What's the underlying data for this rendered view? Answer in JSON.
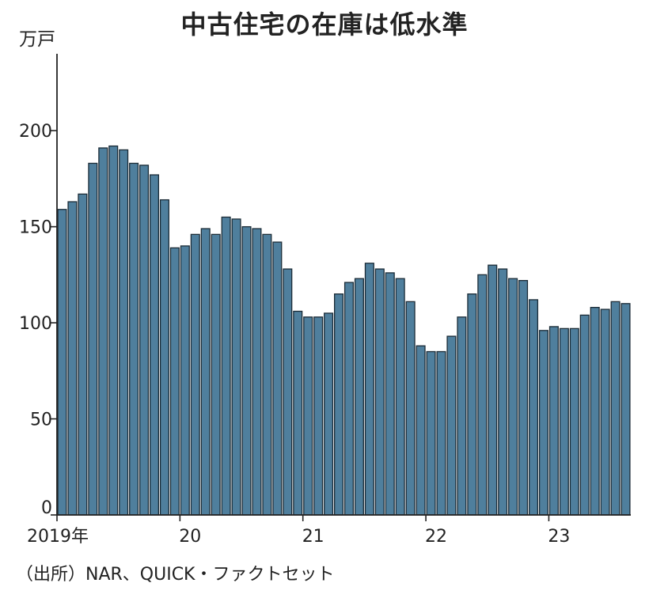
{
  "chart_data": {
    "type": "bar",
    "title": "中古住宅の在庫は低水準",
    "ylabel": "万戸",
    "xlabel": "",
    "ylim": [
      0,
      240
    ],
    "yticks": [
      0,
      50,
      100,
      150,
      200
    ],
    "x_tick_labels": [
      {
        "label": "2019年",
        "index": 0
      },
      {
        "label": "20",
        "index": 12
      },
      {
        "label": "21",
        "index": 24
      },
      {
        "label": "22",
        "index": 36
      },
      {
        "label": "23",
        "index": 48
      }
    ],
    "categories": [
      "2019-01",
      "2019-02",
      "2019-03",
      "2019-04",
      "2019-05",
      "2019-06",
      "2019-07",
      "2019-08",
      "2019-09",
      "2019-10",
      "2019-11",
      "2019-12",
      "2020-01",
      "2020-02",
      "2020-03",
      "2020-04",
      "2020-05",
      "2020-06",
      "2020-07",
      "2020-08",
      "2020-09",
      "2020-10",
      "2020-11",
      "2020-12",
      "2021-01",
      "2021-02",
      "2021-03",
      "2021-04",
      "2021-05",
      "2021-06",
      "2021-07",
      "2021-08",
      "2021-09",
      "2021-10",
      "2021-11",
      "2021-12",
      "2022-01",
      "2022-02",
      "2022-03",
      "2022-04",
      "2022-05",
      "2022-06",
      "2022-07",
      "2022-08",
      "2022-09",
      "2022-10",
      "2022-11",
      "2022-12",
      "2023-01",
      "2023-02",
      "2023-03",
      "2023-04",
      "2023-05",
      "2023-06",
      "2023-07",
      "2023-08"
    ],
    "values": [
      159,
      163,
      167,
      183,
      191,
      192,
      190,
      183,
      182,
      177,
      164,
      139,
      140,
      146,
      149,
      146,
      155,
      154,
      150,
      149,
      146,
      142,
      128,
      106,
      103,
      103,
      105,
      115,
      121,
      123,
      131,
      128,
      126,
      123,
      111,
      88,
      85,
      85,
      93,
      103,
      115,
      125,
      130,
      128,
      123,
      122,
      112,
      96,
      98,
      97,
      97,
      104,
      108,
      107,
      111,
      110
    ],
    "bar_color": "#4f7f9d",
    "grid": false,
    "source": "（出所）NAR、QUICK・ファクトセット"
  }
}
